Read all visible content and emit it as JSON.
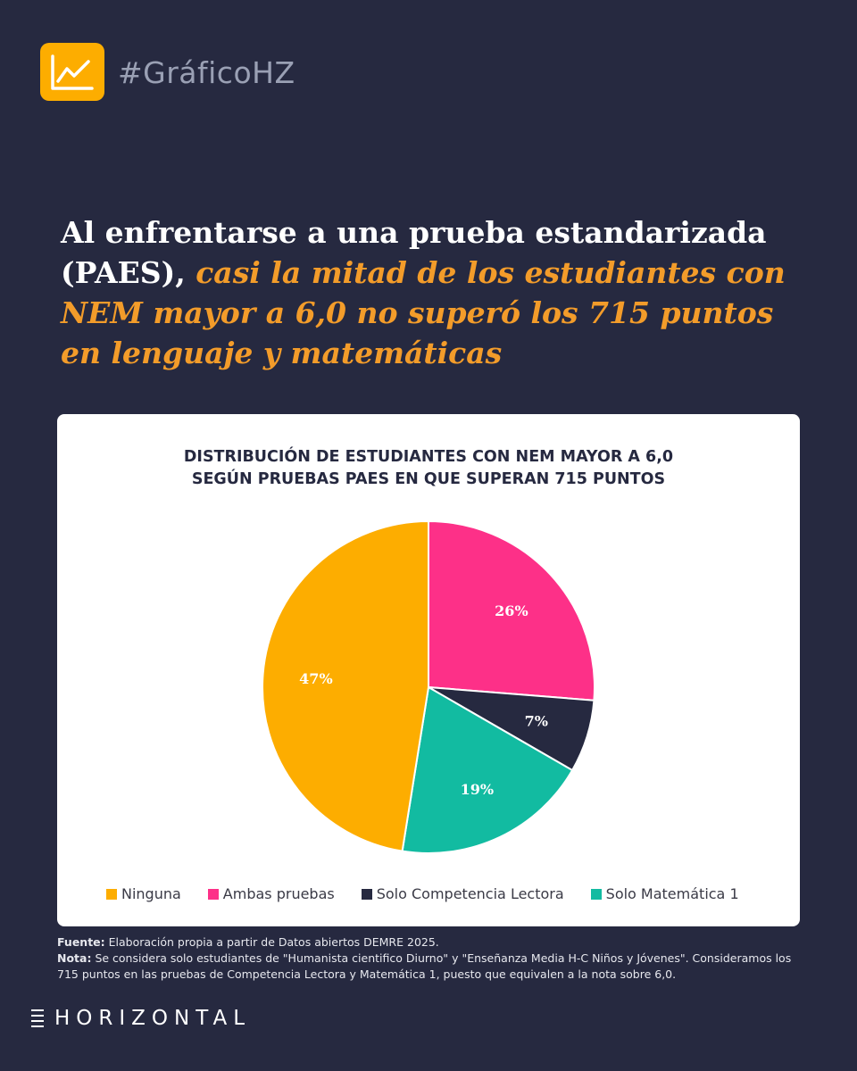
{
  "header": {
    "hashtag": "#GráficoHZ",
    "icon": "line-chart-icon",
    "icon_color": "#fdad00"
  },
  "headline": {
    "plain": "Al enfrentarse a una prueba estandarizada (PAES), ",
    "highlight": "casi la mitad de los estudiantes con NEM mayor a 6,0 no superó los 715 puntos en lenguaje y matemáticas",
    "highlight_color": "#f39c2a"
  },
  "chart_data": {
    "type": "pie",
    "title_lines": [
      "DISTRIBUCIÓN DE ESTUDIANTES CON NEM MAYOR A 6,0",
      "SEGÚN PRUEBAS PAES EN QUE SUPERAN 715 PUNTOS"
    ],
    "categories": [
      "Ninguna",
      "Ambas pruebas",
      "Solo Competencia Lectora",
      "Solo Matemática 1"
    ],
    "values": [
      47,
      26,
      7,
      19
    ],
    "labels": [
      "47%",
      "26%",
      "7%",
      "19%"
    ],
    "colors": [
      "#fdad00",
      "#fd3088",
      "#262940",
      "#12bba1"
    ],
    "legend_position": "bottom"
  },
  "notes": {
    "source_label": "Fuente:",
    "source_text": " Elaboración propia a partir de Datos abiertos DEMRE 2025.",
    "note_label": "Nota:",
    "note_text": " Se considera solo estudiantes de \"Humanista cientifico Diurno\" y \"Enseñanza Media H-C Niños y Jóvenes\". Consideramos los 715 puntos en las pruebas de Competencia Lectora y Matemática 1, puesto que equivalen a la nota sobre 6,0."
  },
  "footer": {
    "logo_text": "HORIZONTAL"
  }
}
